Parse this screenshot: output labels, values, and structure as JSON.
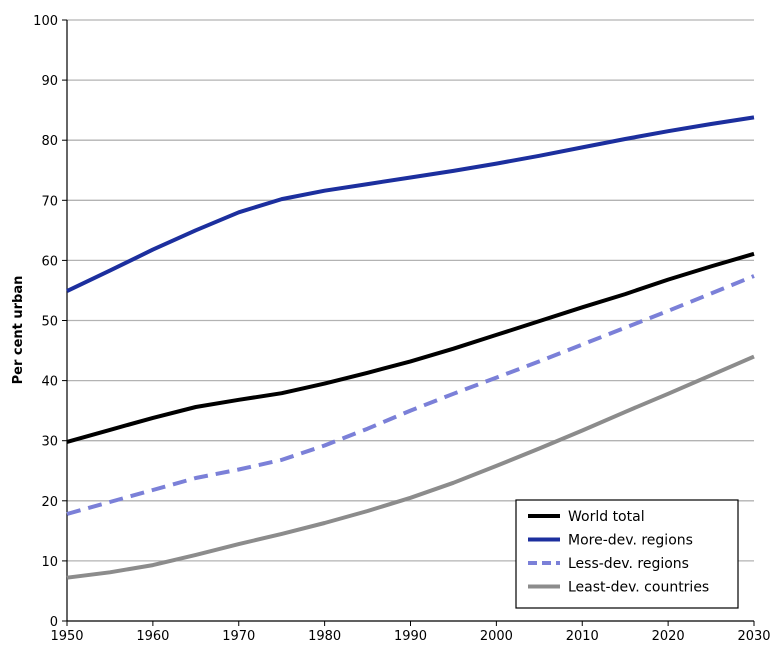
{
  "chart_data": {
    "type": "line",
    "title": "",
    "xlabel": "",
    "ylabel": "Per cent urban",
    "xlim": [
      1950,
      2030
    ],
    "ylim": [
      0,
      100
    ],
    "x_ticks": [
      1950,
      1960,
      1970,
      1980,
      1990,
      2000,
      2010,
      2020,
      2030
    ],
    "y_ticks": [
      0,
      10,
      20,
      30,
      40,
      50,
      60,
      70,
      80,
      90,
      100
    ],
    "grid": "horizontal",
    "legend_position": "bottom-right",
    "x": [
      1950,
      1955,
      1960,
      1965,
      1970,
      1975,
      1980,
      1985,
      1990,
      1995,
      2000,
      2005,
      2010,
      2015,
      2020,
      2025,
      2030
    ],
    "series": [
      {
        "name": "World total",
        "color": "#000000",
        "dash": "solid",
        "values": [
          29.8,
          31.8,
          33.8,
          35.6,
          36.8,
          37.9,
          39.5,
          41.3,
          43.2,
          45.3,
          47.6,
          49.9,
          52.2,
          54.4,
          56.8,
          59.0,
          61.1
        ]
      },
      {
        "name": "More-dev. regions",
        "color": "#1c2f9e",
        "dash": "solid",
        "values": [
          54.9,
          58.3,
          61.8,
          65.0,
          68.0,
          70.2,
          71.6,
          72.7,
          73.8,
          74.9,
          76.1,
          77.4,
          78.8,
          80.2,
          81.5,
          82.7,
          83.8
        ]
      },
      {
        "name": "Less-dev. regions",
        "color": "#7b80d8",
        "dash": "dashed",
        "values": [
          17.8,
          19.8,
          21.8,
          23.8,
          25.2,
          26.8,
          29.2,
          32.0,
          35.0,
          37.8,
          40.5,
          43.2,
          46.0,
          48.8,
          51.6,
          54.5,
          57.4
        ]
      },
      {
        "name": "Least-dev. countries",
        "color": "#8c8c8c",
        "dash": "solid",
        "values": [
          7.2,
          8.1,
          9.3,
          11.0,
          12.8,
          14.5,
          16.3,
          18.3,
          20.5,
          23.0,
          25.8,
          28.7,
          31.7,
          34.8,
          37.8,
          40.9,
          44.0
        ]
      }
    ]
  }
}
